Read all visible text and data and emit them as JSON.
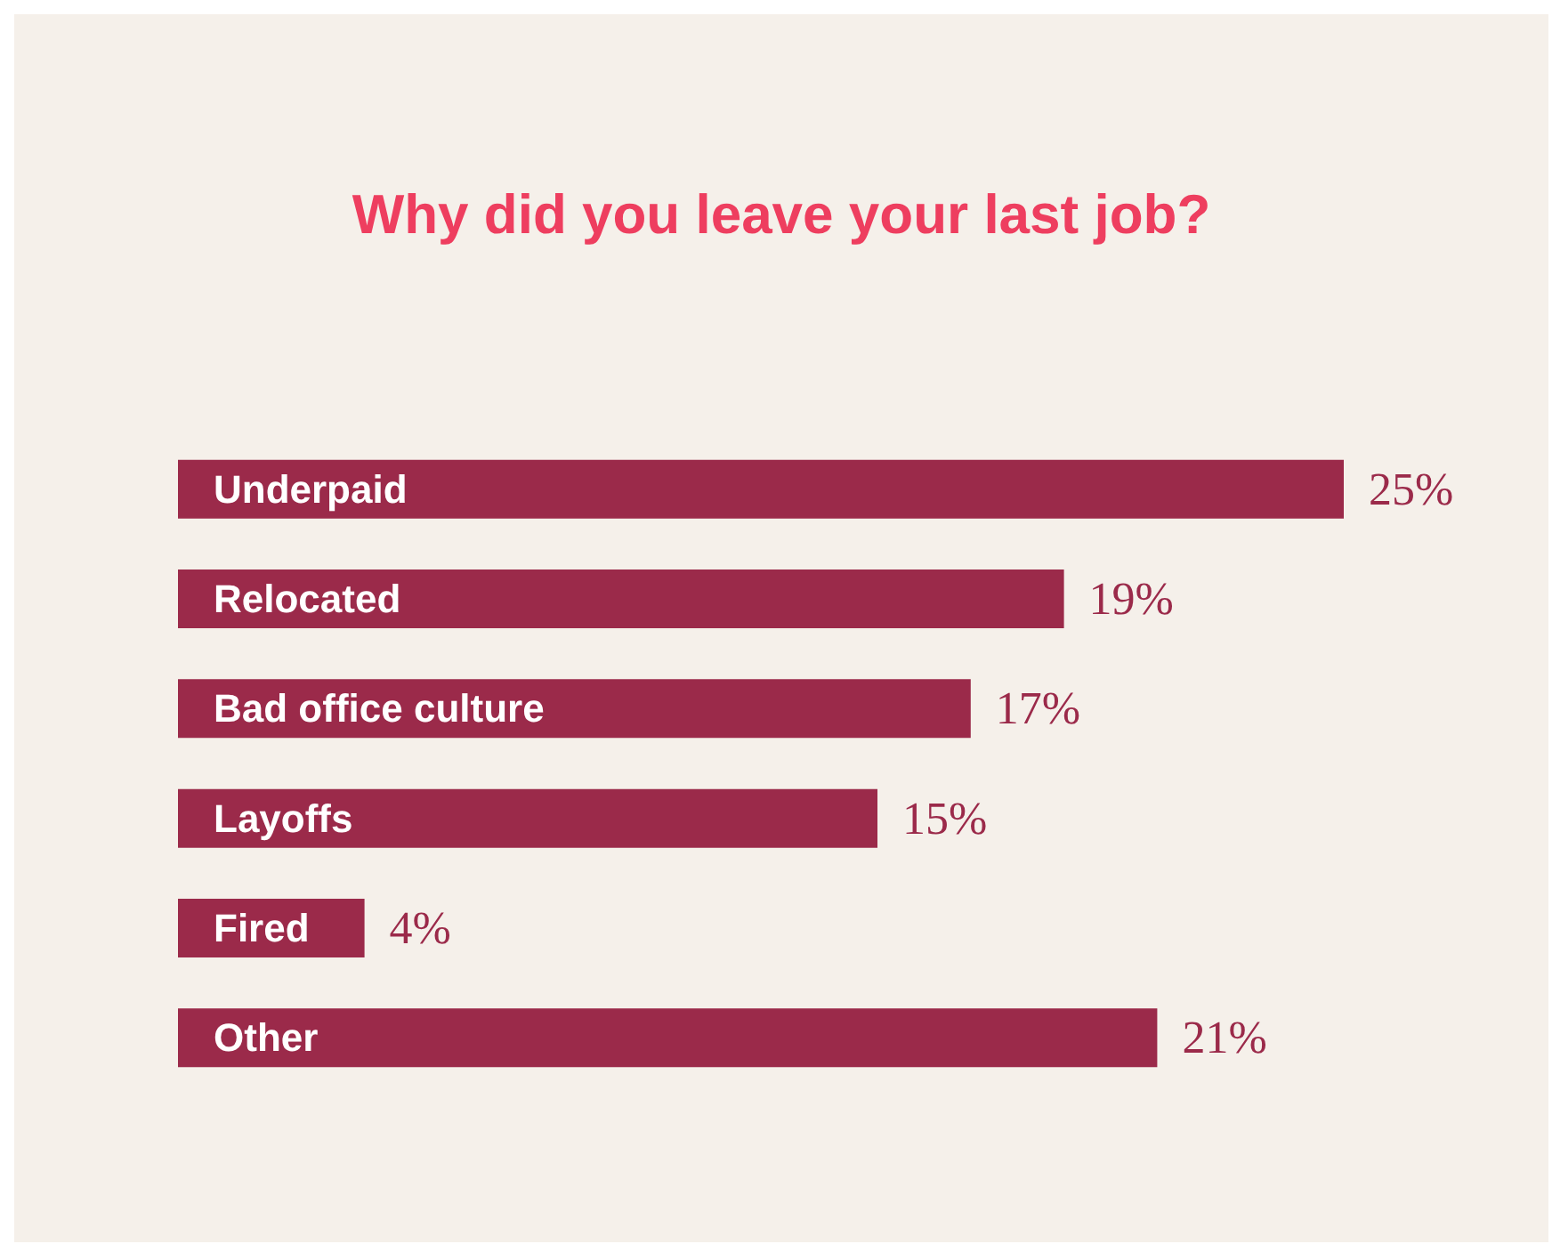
{
  "chart_data": {
    "type": "bar",
    "orientation": "horizontal",
    "title": "Why did you leave your last job?",
    "categories": [
      "Underpaid",
      "Relocated",
      "Bad office culture",
      "Layoffs",
      "Fired",
      "Other"
    ],
    "values": [
      25,
      19,
      17,
      15,
      4,
      21
    ],
    "value_labels": [
      "25%",
      "19%",
      "17%",
      "15%",
      "4%",
      "21%"
    ],
    "color": "#9b2a4a"
  }
}
